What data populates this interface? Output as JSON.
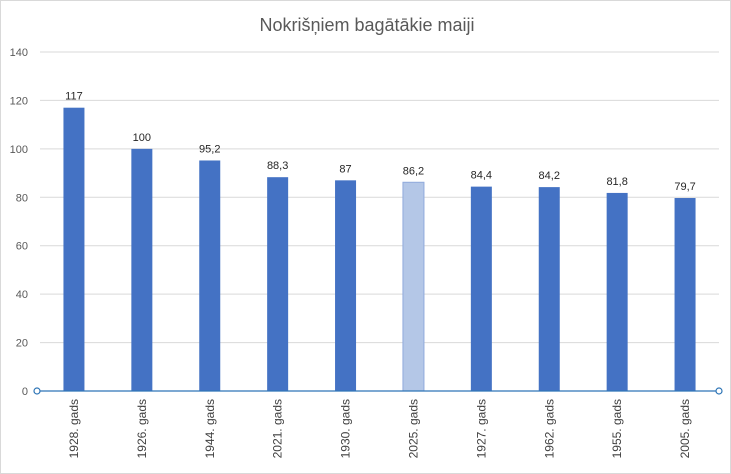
{
  "chart_data": {
    "type": "bar",
    "title": "Nokrišņiem bagātākie maiji",
    "xlabel": "",
    "ylabel": "",
    "categories": [
      "1928. gads",
      "1926. gads",
      "1944. gads",
      "2021. gads",
      "1930. gads",
      "2025. gads",
      "1927. gads",
      "1962. gads",
      "1955. gads",
      "2005. gads"
    ],
    "values": [
      117,
      100,
      95.2,
      88.3,
      87,
      86.2,
      84.4,
      84.2,
      81.8,
      79.7
    ],
    "value_labels": [
      "117",
      "100",
      "95,2",
      "88,3",
      "87",
      "86,2",
      "84,4",
      "84,2",
      "81,8",
      "79,7"
    ],
    "highlight_index": 5,
    "ylim": [
      0,
      140
    ],
    "yticks": [
      "0",
      "20",
      "40",
      "60",
      "80",
      "100",
      "120",
      "140"
    ],
    "grid": true,
    "legend": "none",
    "colors": {
      "bar": "#4472c4",
      "highlight": "#b4c7e7",
      "grid": "#d9d9d9",
      "axis": "#2e75b6"
    }
  }
}
